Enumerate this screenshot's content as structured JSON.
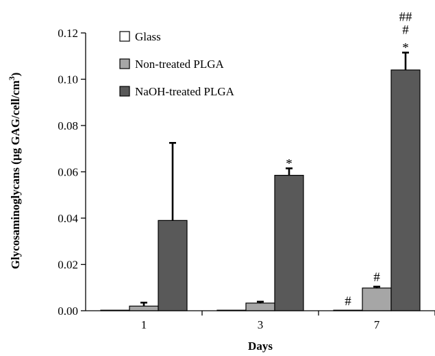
{
  "chart_data": {
    "type": "bar",
    "title": "",
    "xlabel": "Days",
    "ylabel_main": "Glycosaminoglycans (µg GAG/cell/cm",
    "ylabel_sup": "3",
    "ylabel_close": ")",
    "ylim": [
      0,
      0.12
    ],
    "yticks": [
      0,
      0.02,
      0.04,
      0.06,
      0.08,
      0.1,
      0.12
    ],
    "ytick_labels": [
      "0.00",
      "0.02",
      "0.04",
      "0.06",
      "0.08",
      "0.10",
      "0.12"
    ],
    "categories": [
      "1",
      "3",
      "7"
    ],
    "legend_position": "top-left",
    "series": [
      {
        "name": "Glass",
        "color": "#ffffff",
        "values": [
          0.0,
          0.0,
          0.0
        ],
        "errors": [
          0.0,
          0.0,
          0.0
        ]
      },
      {
        "name": "Non-treated PLGA",
        "color": "#a6a6a6",
        "values": [
          0.002,
          0.0033,
          0.0098
        ],
        "errors": [
          0.0015,
          0.0006,
          0.0006
        ]
      },
      {
        "name": "NaOH-treated PLGA",
        "color": "#595959",
        "values": [
          0.039,
          0.0585,
          0.104
        ],
        "errors": [
          0.0335,
          0.003,
          0.0075
        ]
      }
    ],
    "annotations": [
      {
        "category": 1,
        "series": 2,
        "lines": [
          "*"
        ]
      },
      {
        "category": 2,
        "series": 0,
        "lines": [
          "#"
        ]
      },
      {
        "category": 2,
        "series": 1,
        "lines": [
          "#"
        ]
      },
      {
        "category": 2,
        "series": 2,
        "lines": [
          "##",
          "#",
          "*"
        ]
      }
    ]
  }
}
